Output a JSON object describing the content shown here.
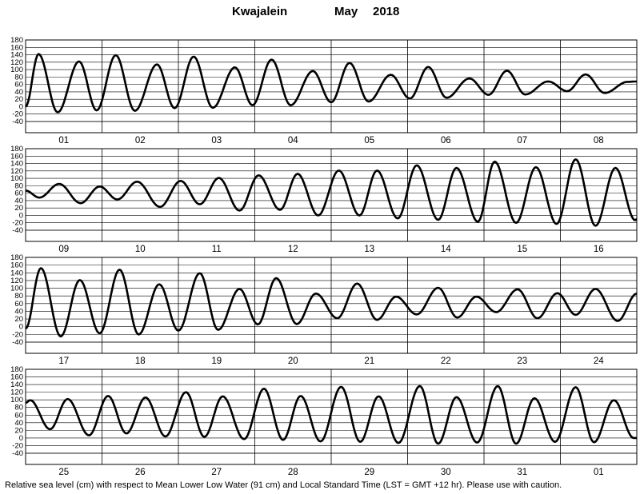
{
  "title": {
    "station": "Kwajalein",
    "month": "May",
    "year": "2018"
  },
  "footer": "Relative sea level (cm) with respect to Mean Lower Low Water (91 cm) and Local Standard Time (LST = GMT +12 hr). Please use with caution.",
  "chart_data": {
    "type": "line",
    "ylabel": "",
    "ylim": [
      -40,
      180
    ],
    "yticks": [
      -40,
      -20,
      0,
      20,
      40,
      60,
      80,
      100,
      120,
      140,
      160,
      180
    ],
    "grid": true,
    "unit": "cm",
    "panels": [
      {
        "day_labels": [
          "01",
          "02",
          "03",
          "04",
          "05",
          "06",
          "07",
          "08"
        ],
        "extrema": [
          [
            0,
            0
          ],
          [
            0.17,
            142
          ],
          [
            0.42,
            -15
          ],
          [
            0.7,
            122
          ],
          [
            0.93,
            -10
          ],
          [
            1.18,
            139
          ],
          [
            1.43,
            -11
          ],
          [
            1.72,
            114
          ],
          [
            1.95,
            -4
          ],
          [
            2.2,
            135
          ],
          [
            2.45,
            -3
          ],
          [
            2.74,
            106
          ],
          [
            2.97,
            4
          ],
          [
            3.22,
            127
          ],
          [
            3.47,
            4
          ],
          [
            3.76,
            96
          ],
          [
            4.0,
            12
          ],
          [
            4.24,
            118
          ],
          [
            4.49,
            14
          ],
          [
            4.78,
            86
          ],
          [
            5.03,
            22
          ],
          [
            5.27,
            107
          ],
          [
            5.51,
            24
          ],
          [
            5.81,
            76
          ],
          [
            6.06,
            32
          ],
          [
            6.3,
            97
          ],
          [
            6.54,
            33
          ],
          [
            6.84,
            68
          ],
          [
            7.09,
            42
          ],
          [
            7.33,
            87
          ],
          [
            7.58,
            37
          ],
          [
            7.88,
            67
          ],
          [
            8.0,
            68
          ]
        ]
      },
      {
        "day_labels": [
          "09",
          "10",
          "11",
          "12",
          "13",
          "14",
          "15",
          "16"
        ],
        "extrema": [
          [
            0,
            67
          ],
          [
            0.18,
            48
          ],
          [
            0.44,
            85
          ],
          [
            0.72,
            33
          ],
          [
            0.97,
            78
          ],
          [
            1.2,
            43
          ],
          [
            1.46,
            91
          ],
          [
            1.76,
            23
          ],
          [
            2.03,
            93
          ],
          [
            2.28,
            30
          ],
          [
            2.53,
            101
          ],
          [
            2.8,
            13
          ],
          [
            3.05,
            108
          ],
          [
            3.33,
            15
          ],
          [
            3.56,
            112
          ],
          [
            3.83,
            0
          ],
          [
            4.1,
            121
          ],
          [
            4.37,
            0
          ],
          [
            4.6,
            121
          ],
          [
            4.87,
            -8
          ],
          [
            5.12,
            135
          ],
          [
            5.4,
            -12
          ],
          [
            5.64,
            128
          ],
          [
            5.92,
            -17
          ],
          [
            6.14,
            145
          ],
          [
            6.42,
            -20
          ],
          [
            6.68,
            130
          ],
          [
            6.95,
            -23
          ],
          [
            7.2,
            151
          ],
          [
            7.46,
            -28
          ],
          [
            7.72,
            128
          ],
          [
            7.98,
            -13
          ],
          [
            8.0,
            -10
          ]
        ]
      },
      {
        "day_labels": [
          "17",
          "18",
          "19",
          "20",
          "21",
          "22",
          "23",
          "24"
        ],
        "extrema": [
          [
            0,
            -5
          ],
          [
            0.2,
            152
          ],
          [
            0.46,
            -25
          ],
          [
            0.71,
            121
          ],
          [
            0.97,
            -17
          ],
          [
            1.23,
            148
          ],
          [
            1.48,
            -20
          ],
          [
            1.75,
            110
          ],
          [
            2.0,
            -10
          ],
          [
            2.28,
            139
          ],
          [
            2.52,
            -8
          ],
          [
            2.8,
            98
          ],
          [
            3.04,
            6
          ],
          [
            3.28,
            126
          ],
          [
            3.55,
            7
          ],
          [
            3.8,
            86
          ],
          [
            4.08,
            22
          ],
          [
            4.34,
            112
          ],
          [
            4.6,
            18
          ],
          [
            4.85,
            78
          ],
          [
            5.12,
            32
          ],
          [
            5.4,
            101
          ],
          [
            5.65,
            24
          ],
          [
            5.9,
            78
          ],
          [
            6.16,
            38
          ],
          [
            6.44,
            97
          ],
          [
            6.7,
            22
          ],
          [
            6.96,
            87
          ],
          [
            7.2,
            31
          ],
          [
            7.46,
            98
          ],
          [
            7.75,
            15
          ],
          [
            8.0,
            86
          ]
        ]
      },
      {
        "day_labels": [
          "25",
          "26",
          "27",
          "28",
          "29",
          "30",
          "31",
          "01"
        ],
        "extrema": [
          [
            0,
            92
          ],
          [
            0.06,
            99
          ],
          [
            0.32,
            23
          ],
          [
            0.55,
            102
          ],
          [
            0.83,
            7
          ],
          [
            1.08,
            110
          ],
          [
            1.32,
            12
          ],
          [
            1.57,
            106
          ],
          [
            1.83,
            4
          ],
          [
            2.1,
            120
          ],
          [
            2.34,
            3
          ],
          [
            2.58,
            109
          ],
          [
            2.86,
            -3
          ],
          [
            3.12,
            129
          ],
          [
            3.37,
            -5
          ],
          [
            3.6,
            110
          ],
          [
            3.86,
            -9
          ],
          [
            4.13,
            134
          ],
          [
            4.38,
            -10
          ],
          [
            4.62,
            109
          ],
          [
            4.88,
            -13
          ],
          [
            5.16,
            136
          ],
          [
            5.4,
            -15
          ],
          [
            5.64,
            107
          ],
          [
            5.91,
            -12
          ],
          [
            6.18,
            136
          ],
          [
            6.42,
            -15
          ],
          [
            6.66,
            104
          ],
          [
            6.93,
            -10
          ],
          [
            7.2,
            133
          ],
          [
            7.44,
            -11
          ],
          [
            7.7,
            99
          ],
          [
            7.96,
            0
          ],
          [
            8.0,
            0
          ]
        ]
      }
    ]
  }
}
